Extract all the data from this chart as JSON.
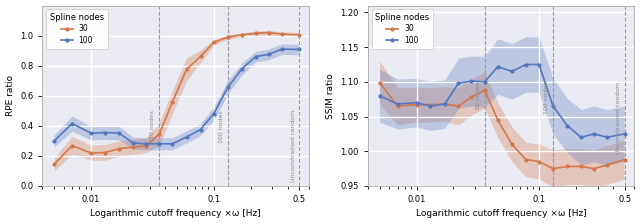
{
  "orange_color": "#D4774A",
  "blue_color": "#5577BB",
  "orange_fill_alpha": 0.3,
  "blue_fill_alpha": 0.3,
  "left_x": [
    0.005,
    0.007,
    0.01,
    0.013,
    0.017,
    0.022,
    0.028,
    0.036,
    0.046,
    0.06,
    0.078,
    0.1,
    0.13,
    0.17,
    0.22,
    0.28,
    0.36,
    0.5
  ],
  "left_y_orange": [
    0.145,
    0.268,
    0.218,
    0.222,
    0.248,
    0.258,
    0.268,
    0.345,
    0.558,
    0.775,
    0.862,
    0.955,
    0.99,
    1.005,
    1.015,
    1.02,
    1.01,
    1.005
  ],
  "left_y_orange_lo": [
    0.1,
    0.21,
    0.17,
    0.17,
    0.2,
    0.21,
    0.22,
    0.27,
    0.48,
    0.7,
    0.82,
    0.935,
    0.975,
    0.99,
    1.0,
    1.005,
    0.995,
    0.99
  ],
  "left_y_orange_hi": [
    0.19,
    0.33,
    0.27,
    0.275,
    0.3,
    0.31,
    0.32,
    0.42,
    0.635,
    0.85,
    0.905,
    0.975,
    1.005,
    1.02,
    1.03,
    1.035,
    1.025,
    1.02
  ],
  "left_y_blue": [
    0.3,
    0.415,
    0.35,
    0.355,
    0.35,
    0.285,
    0.28,
    0.28,
    0.28,
    0.325,
    0.375,
    0.48,
    0.655,
    0.78,
    0.86,
    0.875,
    0.91,
    0.908
  ],
  "left_y_blue_lo": [
    0.26,
    0.365,
    0.305,
    0.31,
    0.305,
    0.245,
    0.24,
    0.24,
    0.24,
    0.285,
    0.335,
    0.435,
    0.61,
    0.74,
    0.825,
    0.84,
    0.875,
    0.873
  ],
  "left_y_blue_hi": [
    0.34,
    0.465,
    0.395,
    0.4,
    0.395,
    0.325,
    0.32,
    0.32,
    0.32,
    0.365,
    0.415,
    0.525,
    0.7,
    0.82,
    0.895,
    0.91,
    0.945,
    0.943
  ],
  "left_ylabel": "RPE ratio",
  "left_ylim": [
    0.0,
    1.2
  ],
  "left_yticks": [
    0.0,
    0.2,
    0.4,
    0.6,
    0.8,
    1.0
  ],
  "right_x": [
    0.005,
    0.007,
    0.01,
    0.013,
    0.017,
    0.022,
    0.028,
    0.036,
    0.046,
    0.06,
    0.078,
    0.1,
    0.13,
    0.17,
    0.22,
    0.28,
    0.36,
    0.5
  ],
  "right_y_orange": [
    1.099,
    1.065,
    1.067,
    1.067,
    1.068,
    1.065,
    1.078,
    1.088,
    1.045,
    1.01,
    0.988,
    0.985,
    0.975,
    0.978,
    0.978,
    0.975,
    0.98,
    0.988
  ],
  "right_y_orange_lo": [
    1.068,
    1.038,
    1.042,
    1.042,
    1.043,
    1.038,
    1.052,
    1.062,
    1.02,
    0.985,
    0.963,
    0.96,
    0.948,
    0.952,
    0.952,
    0.948,
    0.952,
    0.96
  ],
  "right_y_orange_hi": [
    1.13,
    1.092,
    1.092,
    1.092,
    1.093,
    1.092,
    1.104,
    1.114,
    1.07,
    1.035,
    1.013,
    1.01,
    1.002,
    1.004,
    1.004,
    1.002,
    1.008,
    1.016
  ],
  "right_y_blue": [
    1.08,
    1.068,
    1.07,
    1.065,
    1.068,
    1.098,
    1.101,
    1.1,
    1.122,
    1.115,
    1.125,
    1.125,
    1.065,
    1.037,
    1.02,
    1.025,
    1.02,
    1.025
  ],
  "right_y_blue_lo": [
    1.042,
    1.032,
    1.035,
    1.03,
    1.033,
    1.062,
    1.065,
    1.063,
    1.082,
    1.075,
    1.085,
    1.085,
    1.025,
    0.998,
    0.98,
    0.985,
    0.98,
    0.985
  ],
  "right_y_blue_hi": [
    1.118,
    1.104,
    1.105,
    1.1,
    1.103,
    1.134,
    1.137,
    1.137,
    1.162,
    1.155,
    1.165,
    1.165,
    1.105,
    1.076,
    1.06,
    1.065,
    1.06,
    1.065
  ],
  "right_ylabel": "SSIM ratio",
  "right_ylim": [
    0.95,
    1.21
  ],
  "right_yticks": [
    0.95,
    1.0,
    1.05,
    1.1,
    1.15,
    1.2
  ],
  "vline_30nodes": 0.036,
  "vline_100nodes": 0.13,
  "vline_unconstrained": 0.5,
  "xlabel": "Logarithmic cutoff frequency ×ω [Hz]",
  "legend_title": "Spline nodes",
  "legend_30": "30",
  "legend_100": "100",
  "xticks": [
    0.01,
    0.1,
    0.5
  ],
  "xtick_labels": [
    "0.01",
    "0.1",
    "0.5"
  ],
  "bg_color": "#EAEAF2",
  "grid_color": "white",
  "fig_bg": "#FFFFFF"
}
